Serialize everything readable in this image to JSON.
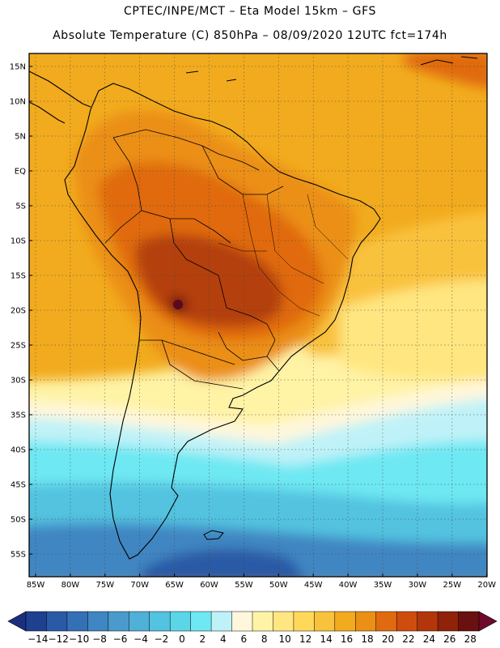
{
  "header": {
    "line1": "CPTEC/INPE/MCT –  Eta Model 15km – GFS",
    "line2": "Absolute Temperature (C) 850hPa – 08/09/2020 12UTC fct=174h"
  },
  "axes": {
    "lat_labels": [
      "15N",
      "10N",
      "5N",
      "EQ",
      "5S",
      "10S",
      "15S",
      "20S",
      "25S",
      "30S",
      "35S",
      "40S",
      "45S",
      "50S",
      "55S"
    ],
    "lon_labels": [
      "85W",
      "80W",
      "75W",
      "70W",
      "65W",
      "60W",
      "55W",
      "50W",
      "45W",
      "40W",
      "35W",
      "30W",
      "25W",
      "20W"
    ]
  },
  "colorbar": {
    "labels": [
      "-14",
      "-12",
      "-10",
      "-8",
      "-6",
      "-4",
      "-2",
      "0",
      "2",
      "4",
      "6",
      "8",
      "10",
      "12",
      "14",
      "16",
      "18",
      "20",
      "22",
      "24",
      "26",
      "28"
    ],
    "colors": [
      "#1f3f8f",
      "#2a5aa6",
      "#3470b5",
      "#3f86c2",
      "#4a9bcc",
      "#4fb0d8",
      "#52c3e0",
      "#5bd6e8",
      "#6ee8f2",
      "#bff2f8",
      "#fff7dc",
      "#fff3a6",
      "#ffe680",
      "#ffd85a",
      "#f9c23c",
      "#f2ab1e",
      "#eb8f16",
      "#e06a10",
      "#cf4d0c",
      "#b2360a",
      "#8f2208",
      "#6a1010"
    ],
    "low_arrow": "#1a2f80",
    "high_arrow": "#6e0a2a"
  },
  "palette": {
    "warm_dark": "#b4410c",
    "warm_mid": "#e06a10",
    "warm": "#eb8f16",
    "orange": "#f2ab1e",
    "yellow": "#f9c23c",
    "pale_yellow": "#ffe680",
    "cream": "#fff3a6",
    "pale": "#fff7dc",
    "cyan_light": "#bff2f8",
    "cyan": "#6ee8f2",
    "cyan_mid": "#52c3e0",
    "blue": "#3f86c2",
    "blue_dark": "#2a5aa6",
    "hot_spot": "#6a1010"
  }
}
